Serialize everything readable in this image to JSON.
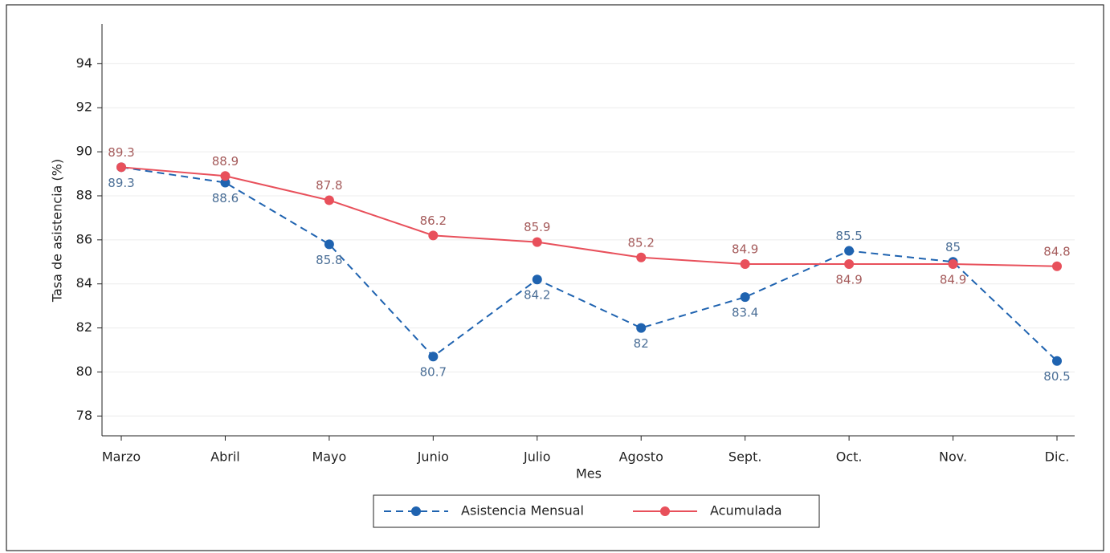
{
  "chart_data": {
    "type": "line",
    "x_label": "Mes",
    "y_label": "Tasa de asistencia (%)",
    "categories": [
      "Marzo",
      "Abril",
      "Mayo",
      "Junio",
      "Julio",
      "Agosto",
      "Sept.",
      "Oct.",
      "Nov.",
      "Dic."
    ],
    "series": [
      {
        "name": "Asistencia Mensual",
        "color": "#1f63b0",
        "label_color": "#4a6e96",
        "dashed": true,
        "values": [
          89.3,
          88.6,
          85.8,
          80.7,
          84.2,
          82,
          83.4,
          85.5,
          85,
          80.5
        ]
      },
      {
        "name": "Acumulada",
        "color": "#e8505b",
        "label_color": "#a55b5b",
        "dashed": false,
        "values": [
          89.3,
          88.9,
          87.8,
          86.2,
          85.9,
          85.2,
          84.9,
          84.9,
          84.9,
          84.8
        ]
      }
    ],
    "ylim": [
      77.1,
      95.8
    ],
    "yticks": [
      78,
      80,
      82,
      84,
      86,
      88,
      90,
      92,
      94
    ],
    "grid": true
  }
}
